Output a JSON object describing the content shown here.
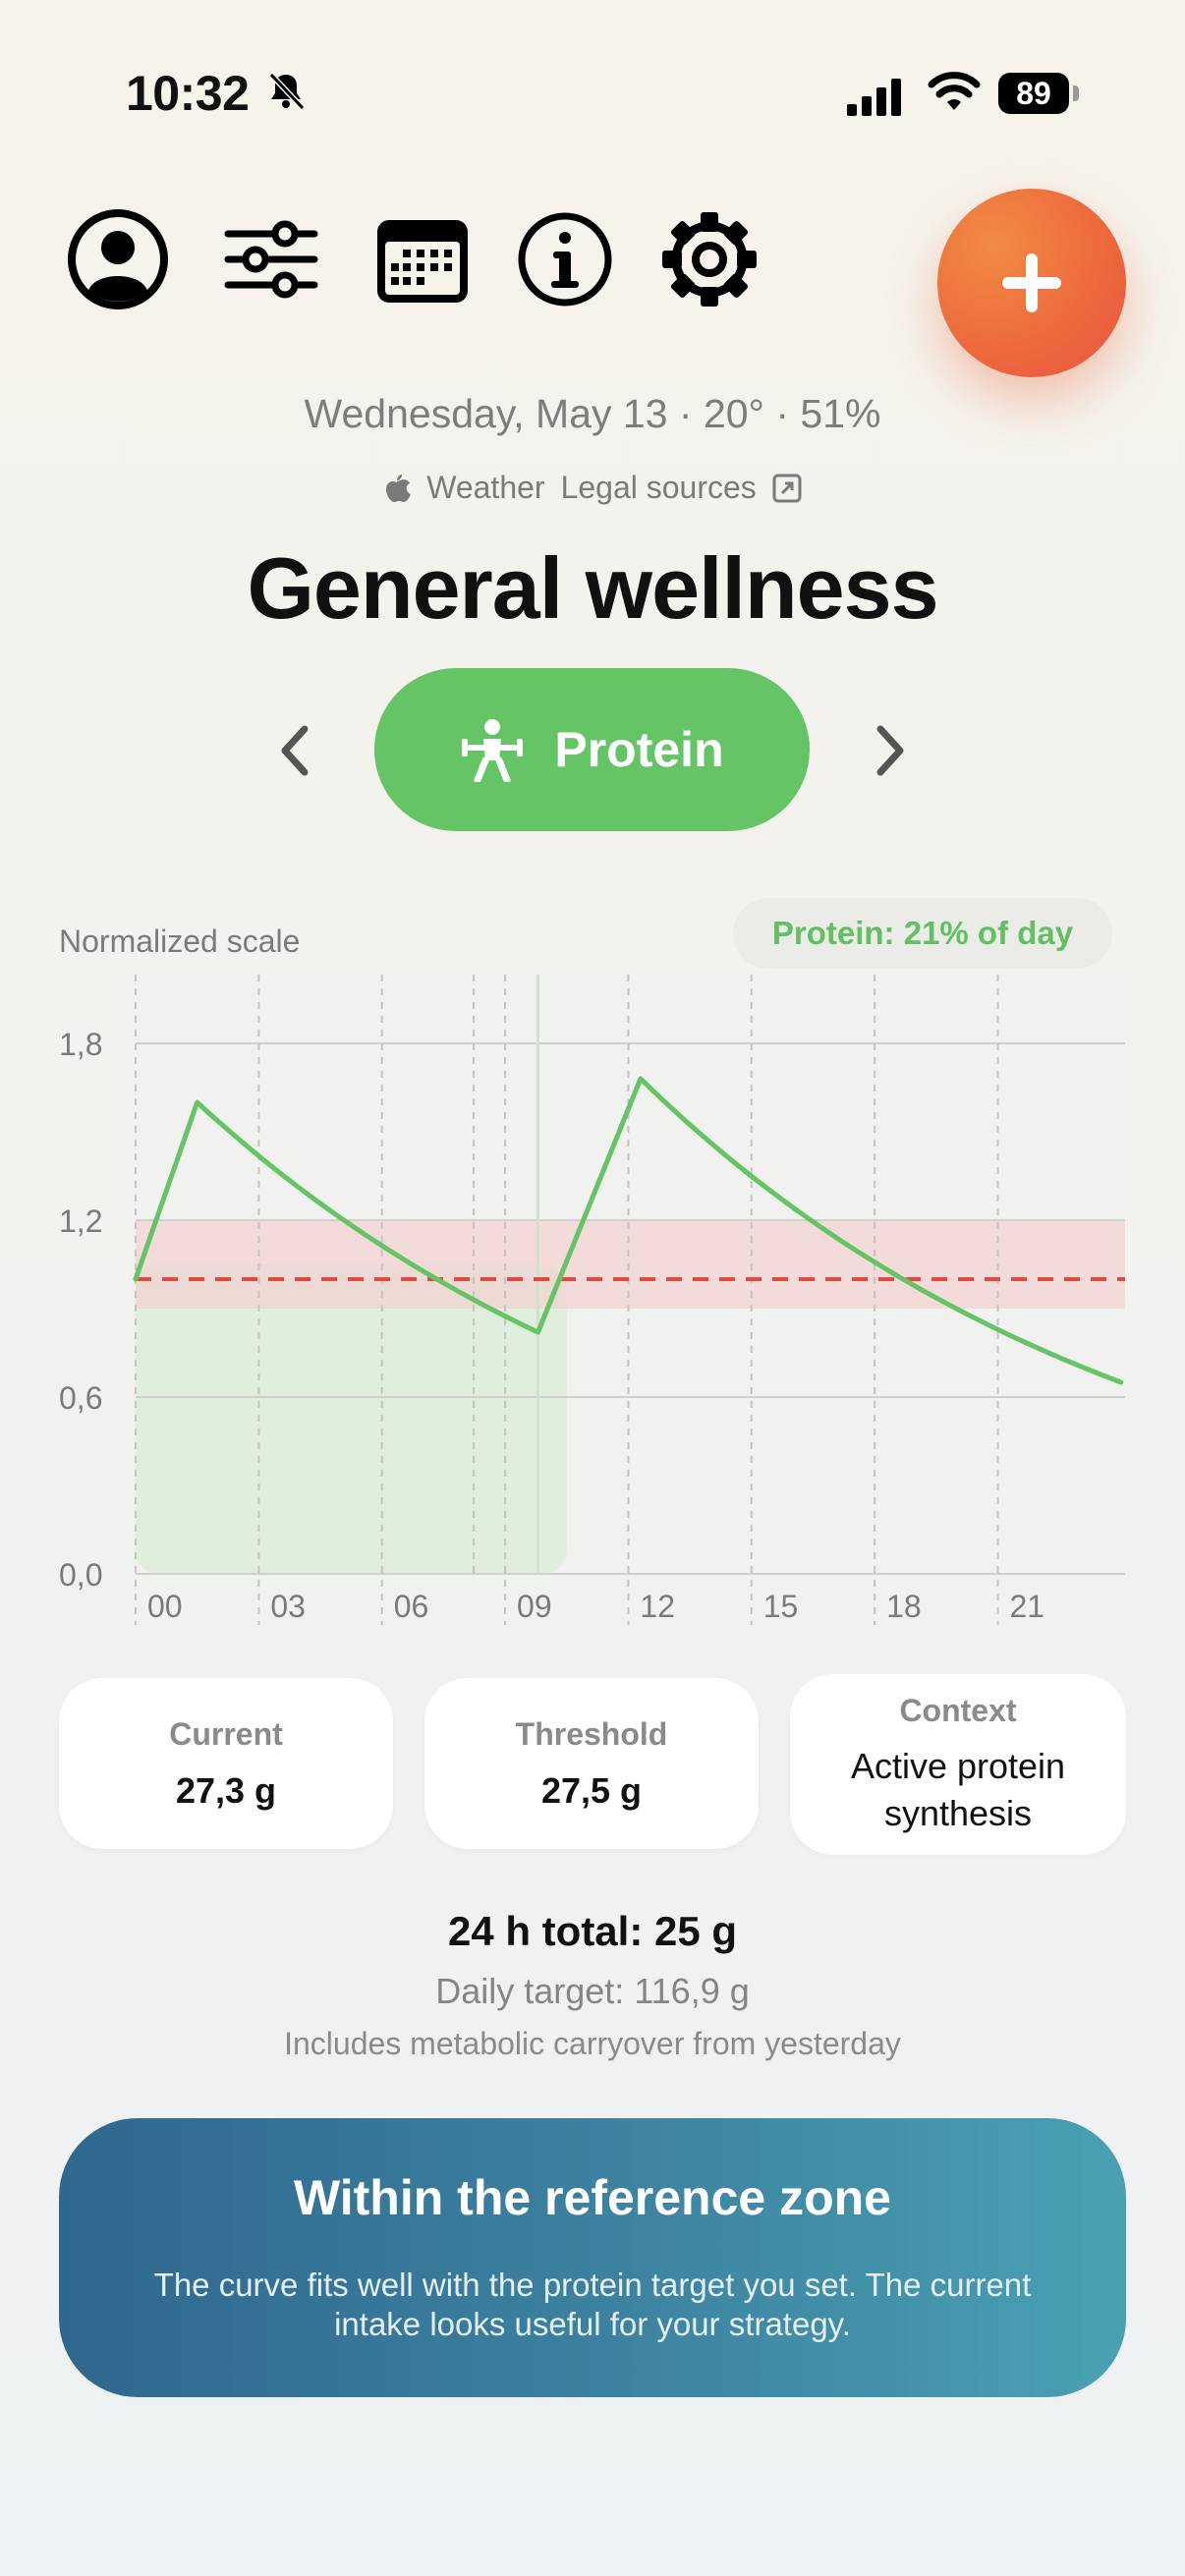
{
  "status_bar": {
    "time": "10:32",
    "battery": "89"
  },
  "header": {
    "date_line": "Wednesday, May 13 · 20° · 51%",
    "weather_label": "Weather",
    "legal_label": "Legal sources",
    "title": "General wellness"
  },
  "toolbar": {
    "icons": [
      "profile-icon",
      "sliders-icon",
      "calendar-icon",
      "info-icon",
      "gear-icon"
    ],
    "add_icon": "plus-icon"
  },
  "selector": {
    "label": "Protein",
    "icon": "weightlifter-icon"
  },
  "chart_header": {
    "scale_label": "Normalized scale",
    "chip": "Protein: 21% of day"
  },
  "chart_data": {
    "type": "line",
    "x_ticks": [
      "00",
      "03",
      "06",
      "09",
      "12",
      "15",
      "18",
      "21"
    ],
    "y_ticks": [
      "0,0",
      "0,6",
      "1,2",
      "1,8"
    ],
    "ylim": [
      0,
      1.8
    ],
    "xlim": [
      0,
      24
    ],
    "series": [
      {
        "x": [
          0,
          1.5,
          9.8,
          12.3,
          24
        ],
        "values": [
          1.0,
          1.6,
          0.82,
          1.68,
          0.65
        ]
      }
    ],
    "threshold": 1.0,
    "reference_band": [
      0.9,
      1.2
    ],
    "elapsed_until_hour": 10.5,
    "colors": {
      "line": "#65c566",
      "threshold": "#e04a3f",
      "band": "#f3d3d1",
      "elapsed": "#dcefd7"
    }
  },
  "cards": [
    {
      "label": "Current",
      "value": "27,3 g"
    },
    {
      "label": "Threshold",
      "value": "27,5 g"
    },
    {
      "label": "Context",
      "value": "Active protein synthesis"
    }
  ],
  "summary": {
    "total": "24 h total: 25 g",
    "target": "Daily target: 116,9 g",
    "carryover": "Includes metabolic carryover from yesterday"
  },
  "banner": {
    "title": "Within the reference zone",
    "body": "The curve fits well with the protein target you set. The current intake looks useful for your strategy."
  }
}
